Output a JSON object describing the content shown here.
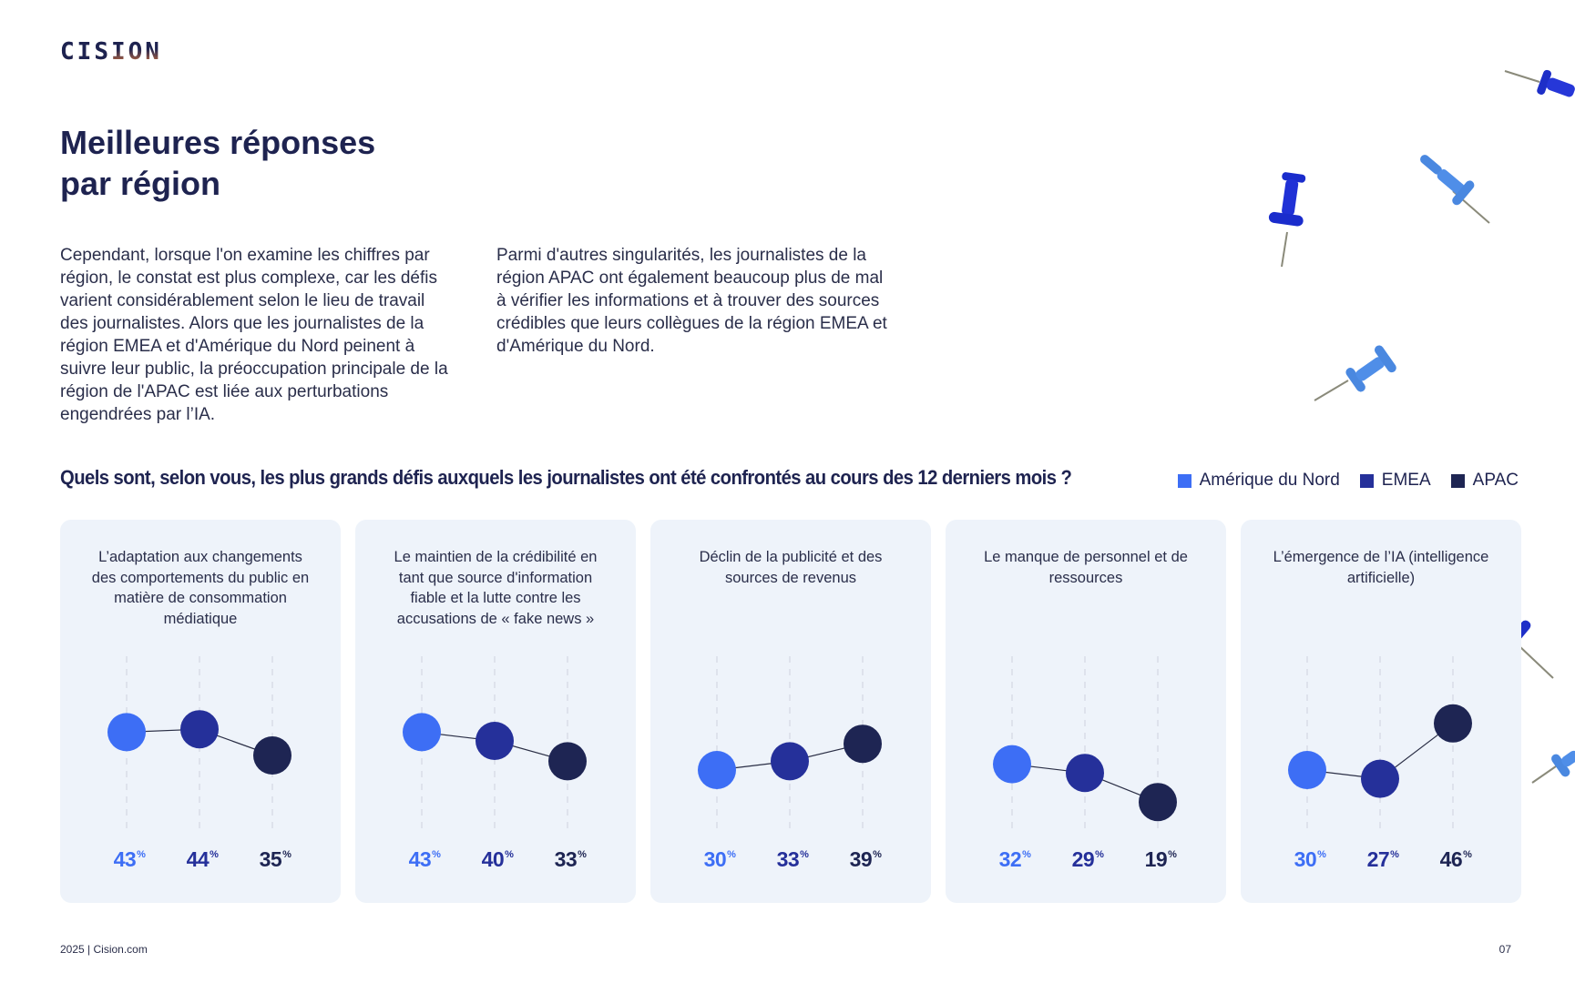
{
  "logo": {
    "text": "CISION"
  },
  "page_title": {
    "line1": "Meilleures réponses",
    "line2": "par région"
  },
  "intro": {
    "col1": "Cependant, lorsque l'on examine les chiffres par région, le constat est plus complexe, car les défis varient considérablement selon le lieu de travail des journalistes. Alors que les journalistes de la région EMEA et d'Amérique du Nord peinent à suivre leur public, la préoccupation principale de la région de l'APAC est liée aux perturbations engendrées par l’IA.",
    "col2": "Parmi d'autres singularités, les journalistes de la région APAC ont également beaucoup plus de mal à vérifier les informations et à trouver des sources crédibles que leurs collègues de la région EMEA et d'Amérique du Nord."
  },
  "question": "Quels sont, selon vous, les plus grands défis auxquels les journalistes ont été confrontés au cours des 12 derniers mois ?",
  "legend": [
    {
      "label": "Amérique du Nord",
      "color": "#3d6ef5"
    },
    {
      "label": "EMEA",
      "color": "#25309a"
    },
    {
      "label": "APAC",
      "color": "#1e2553"
    }
  ],
  "percent_sign": "%",
  "cards": [
    {
      "title": "L’adaptation aux changements des comportements du public en matière de consommation médiatique",
      "values": [
        "43",
        "44",
        "35"
      ]
    },
    {
      "title": "Le maintien de la crédibilité en tant que source d'information fiable et la lutte contre les accusations de « fake news »",
      "values": [
        "43",
        "40",
        "33"
      ]
    },
    {
      "title": "Déclin de la publicité et des sources de revenus",
      "values": [
        "30",
        "33",
        "39"
      ]
    },
    {
      "title": "Le manque de personnel et de ressources",
      "values": [
        "32",
        "29",
        "19"
      ]
    },
    {
      "title": "L’émergence de l’IA (intelligence artificielle)",
      "values": [
        "30",
        "27",
        "46"
      ]
    }
  ],
  "footer": {
    "left": "2025 | Cision.com",
    "page": "07"
  },
  "chart_data": {
    "type": "scatter",
    "title": "Quels sont, selon vous, les plus grands défis auxquels les journalistes ont été confrontés au cours des 12 derniers mois ?",
    "categories": [
      "L’adaptation aux changements des comportements du public en matière de consommation médiatique",
      "Le maintien de la crédibilité en tant que source d'information fiable et la lutte contre les accusations de « fake news »",
      "Déclin de la publicité et des sources de revenus",
      "Le manque de personnel et de ressources",
      "L’émergence de l’IA (intelligence artificielle)"
    ],
    "series": [
      {
        "name": "Amérique du Nord",
        "color": "#3d6ef5",
        "values": [
          43,
          43,
          30,
          32,
          30
        ]
      },
      {
        "name": "EMEA",
        "color": "#25309a",
        "values": [
          44,
          40,
          33,
          29,
          27
        ]
      },
      {
        "name": "APAC",
        "color": "#1e2553",
        "values": [
          35,
          33,
          39,
          19,
          46
        ]
      }
    ],
    "unit": "%",
    "legend_position": "top-right",
    "grid": "dashed vertical guides per region"
  }
}
